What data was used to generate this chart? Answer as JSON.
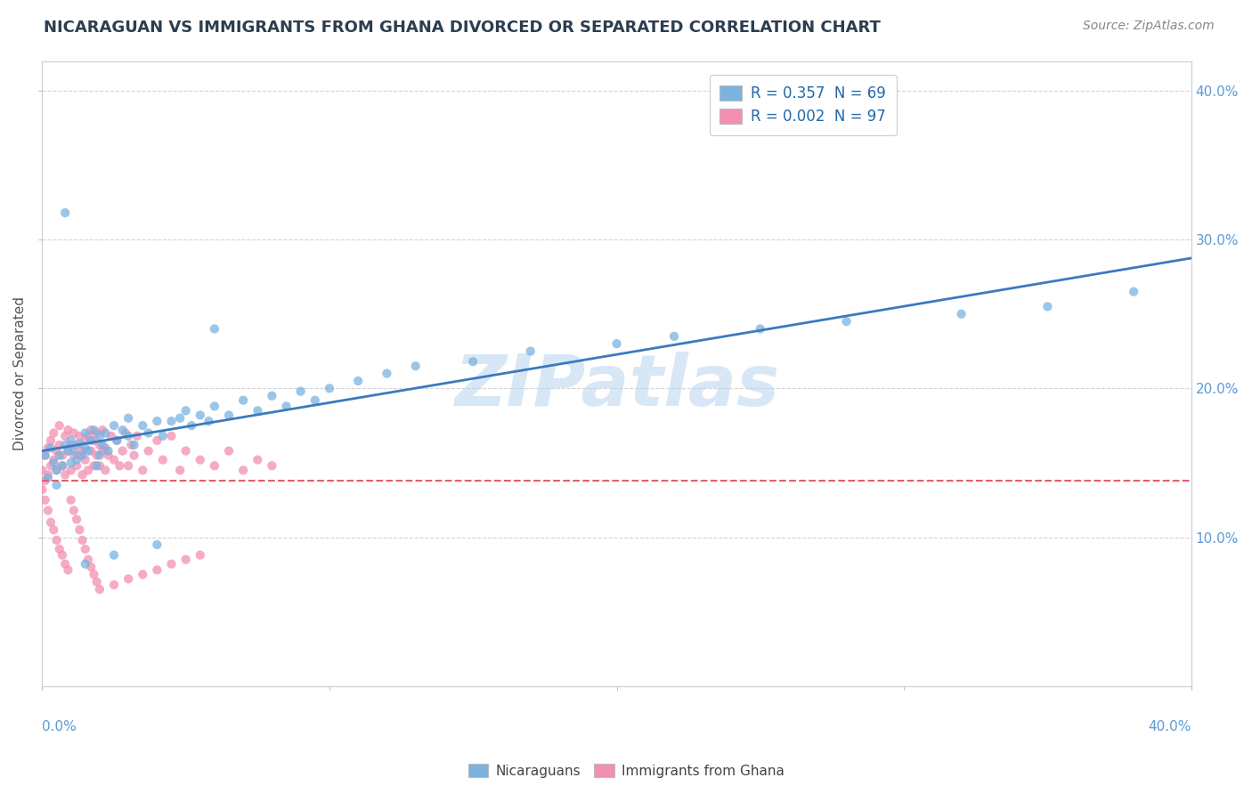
{
  "title": "NICARAGUAN VS IMMIGRANTS FROM GHANA DIVORCED OR SEPARATED CORRELATION CHART",
  "source": "Source: ZipAtlas.com",
  "ylabel": "Divorced or Separated",
  "blue_color": "#7ab3e0",
  "pink_color": "#f48fb1",
  "blue_line_color": "#3a7abf",
  "pink_line_color": "#e06070",
  "watermark_text": "ZIPatlas",
  "background_color": "#ffffff",
  "grid_color": "#c8c8c8",
  "legend_blue_label": "R = 0.357  N = 69",
  "legend_pink_label": "R = 0.002  N = 97",
  "bottom_legend_blue": "Nicaraguans",
  "bottom_legend_pink": "Immigrants from Ghana",
  "xlim": [
    0.0,
    0.4
  ],
  "ylim": [
    0.0,
    0.42
  ],
  "ytick_vals": [
    0.1,
    0.2,
    0.3,
    0.4
  ],
  "ytick_labels": [
    "10.0%",
    "20.0%",
    "30.0%",
    "40.0%"
  ],
  "blue_R": 0.357,
  "pink_R": 0.002,
  "nicaraguan_x": [
    0.001,
    0.002,
    0.003,
    0.004,
    0.005,
    0.005,
    0.006,
    0.007,
    0.008,
    0.009,
    0.01,
    0.01,
    0.011,
    0.012,
    0.013,
    0.014,
    0.015,
    0.015,
    0.016,
    0.017,
    0.018,
    0.019,
    0.02,
    0.02,
    0.021,
    0.022,
    0.023,
    0.025,
    0.026,
    0.028,
    0.03,
    0.03,
    0.032,
    0.035,
    0.037,
    0.04,
    0.042,
    0.045,
    0.048,
    0.05,
    0.052,
    0.055,
    0.058,
    0.06,
    0.065,
    0.07,
    0.075,
    0.08,
    0.085,
    0.09,
    0.095,
    0.1,
    0.11,
    0.12,
    0.13,
    0.15,
    0.17,
    0.2,
    0.22,
    0.25,
    0.28,
    0.32,
    0.35,
    0.38,
    0.06,
    0.04,
    0.025,
    0.015,
    0.008
  ],
  "nicaraguan_y": [
    0.155,
    0.14,
    0.16,
    0.15,
    0.145,
    0.135,
    0.155,
    0.148,
    0.162,
    0.158,
    0.15,
    0.165,
    0.158,
    0.152,
    0.163,
    0.155,
    0.16,
    0.17,
    0.158,
    0.165,
    0.172,
    0.148,
    0.155,
    0.168,
    0.162,
    0.17,
    0.158,
    0.175,
    0.165,
    0.172,
    0.168,
    0.18,
    0.162,
    0.175,
    0.17,
    0.178,
    0.168,
    0.178,
    0.18,
    0.185,
    0.175,
    0.182,
    0.178,
    0.188,
    0.182,
    0.192,
    0.185,
    0.195,
    0.188,
    0.198,
    0.192,
    0.2,
    0.205,
    0.21,
    0.215,
    0.218,
    0.225,
    0.23,
    0.235,
    0.24,
    0.245,
    0.25,
    0.255,
    0.265,
    0.24,
    0.095,
    0.088,
    0.082,
    0.318
  ],
  "ghana_x": [
    0.0,
    0.001,
    0.001,
    0.002,
    0.002,
    0.003,
    0.003,
    0.004,
    0.004,
    0.005,
    0.005,
    0.006,
    0.006,
    0.007,
    0.007,
    0.008,
    0.008,
    0.009,
    0.009,
    0.01,
    0.01,
    0.011,
    0.011,
    0.012,
    0.012,
    0.013,
    0.013,
    0.014,
    0.014,
    0.015,
    0.015,
    0.016,
    0.016,
    0.017,
    0.017,
    0.018,
    0.018,
    0.019,
    0.019,
    0.02,
    0.02,
    0.021,
    0.021,
    0.022,
    0.022,
    0.023,
    0.024,
    0.025,
    0.026,
    0.027,
    0.028,
    0.029,
    0.03,
    0.031,
    0.032,
    0.033,
    0.035,
    0.037,
    0.04,
    0.042,
    0.045,
    0.048,
    0.05,
    0.055,
    0.06,
    0.065,
    0.07,
    0.075,
    0.08,
    0.0,
    0.001,
    0.002,
    0.003,
    0.004,
    0.005,
    0.006,
    0.007,
    0.008,
    0.009,
    0.01,
    0.011,
    0.012,
    0.013,
    0.014,
    0.015,
    0.016,
    0.017,
    0.018,
    0.019,
    0.02,
    0.025,
    0.03,
    0.035,
    0.04,
    0.045,
    0.05,
    0.055
  ],
  "ghana_y": [
    0.145,
    0.138,
    0.155,
    0.142,
    0.16,
    0.148,
    0.165,
    0.152,
    0.17,
    0.158,
    0.145,
    0.162,
    0.175,
    0.148,
    0.155,
    0.168,
    0.142,
    0.158,
    0.172,
    0.145,
    0.162,
    0.155,
    0.17,
    0.148,
    0.162,
    0.155,
    0.168,
    0.142,
    0.158,
    0.165,
    0.152,
    0.168,
    0.145,
    0.158,
    0.172,
    0.148,
    0.165,
    0.155,
    0.17,
    0.148,
    0.162,
    0.158,
    0.172,
    0.145,
    0.16,
    0.155,
    0.168,
    0.152,
    0.165,
    0.148,
    0.158,
    0.17,
    0.148,
    0.162,
    0.155,
    0.168,
    0.145,
    0.158,
    0.165,
    0.152,
    0.168,
    0.145,
    0.158,
    0.152,
    0.148,
    0.158,
    0.145,
    0.152,
    0.148,
    0.132,
    0.125,
    0.118,
    0.11,
    0.105,
    0.098,
    0.092,
    0.088,
    0.082,
    0.078,
    0.125,
    0.118,
    0.112,
    0.105,
    0.098,
    0.092,
    0.085,
    0.08,
    0.075,
    0.07,
    0.065,
    0.068,
    0.072,
    0.075,
    0.078,
    0.082,
    0.085,
    0.088
  ]
}
